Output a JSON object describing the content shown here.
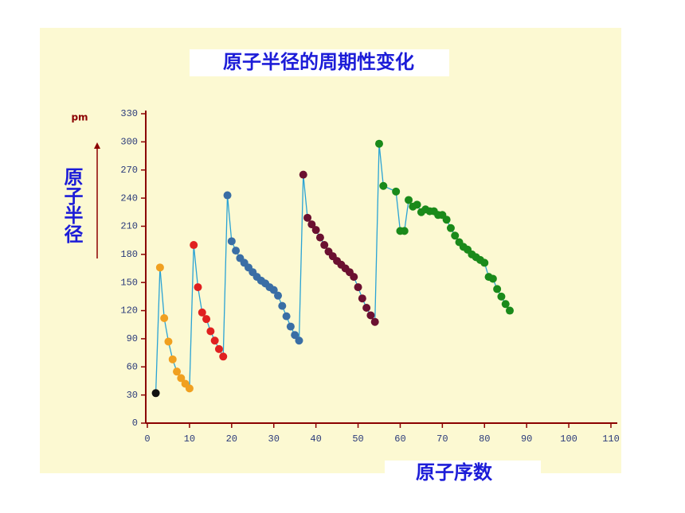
{
  "chart_data": {
    "type": "scatter",
    "title": "原子半径的周期性变化",
    "y_axis_label": "原子半径",
    "y_unit": "pm",
    "x_axis_label": "原子序数",
    "xlim": [
      0,
      110
    ],
    "xticks": [
      0,
      10,
      20,
      30,
      40,
      50,
      60,
      70,
      80,
      90,
      100,
      110
    ],
    "ylim": [
      0,
      330
    ],
    "yticks": [
      0,
      30,
      60,
      90,
      120,
      150,
      180,
      210,
      240,
      270,
      300,
      330
    ],
    "line_color": "#2aa3d4",
    "series": [
      {
        "color": "#111111",
        "x": [
          2
        ],
        "values": [
          32
        ]
      },
      {
        "color": "#f0a020",
        "x": [
          3,
          4,
          5,
          6,
          7,
          8,
          9,
          10
        ],
        "values": [
          166,
          112,
          87,
          68,
          55,
          48,
          42,
          37
        ]
      },
      {
        "color": "#e02020",
        "x": [
          11,
          12,
          13,
          14,
          15,
          16,
          17,
          18
        ],
        "values": [
          190,
          145,
          118,
          111,
          98,
          88,
          79,
          71
        ]
      },
      {
        "color": "#3a6ea5",
        "x": [
          19,
          20,
          21,
          22,
          23,
          24,
          25,
          26,
          27,
          28,
          29,
          30,
          31,
          32,
          33,
          34,
          35,
          36
        ],
        "values": [
          243,
          194,
          184,
          176,
          171,
          166,
          161,
          156,
          152,
          149,
          145,
          142,
          136,
          125,
          114,
          103,
          94,
          88
        ]
      },
      {
        "color": "#6b1030",
        "x": [
          37,
          38,
          39,
          40,
          41,
          42,
          43,
          44,
          45,
          46,
          47,
          48,
          49,
          50,
          51,
          52,
          53,
          54
        ],
        "values": [
          265,
          219,
          212,
          206,
          198,
          190,
          183,
          178,
          173,
          169,
          165,
          161,
          156,
          145,
          133,
          123,
          115,
          108
        ]
      },
      {
        "color": "#1a8a1a",
        "x": [
          55,
          56,
          59,
          60,
          61,
          62,
          63,
          64,
          65,
          66,
          67,
          68,
          69,
          70,
          71,
          72,
          73,
          74,
          75,
          76,
          77,
          78,
          79,
          80,
          81,
          82,
          83,
          84,
          85,
          86
        ],
        "values": [
          298,
          253,
          247,
          205,
          205,
          238,
          231,
          233,
          225,
          228,
          226,
          226,
          222,
          222,
          217,
          208,
          200,
          193,
          188,
          185,
          180,
          177,
          174,
          171,
          156,
          154,
          143,
          135,
          127,
          120
        ]
      }
    ]
  }
}
